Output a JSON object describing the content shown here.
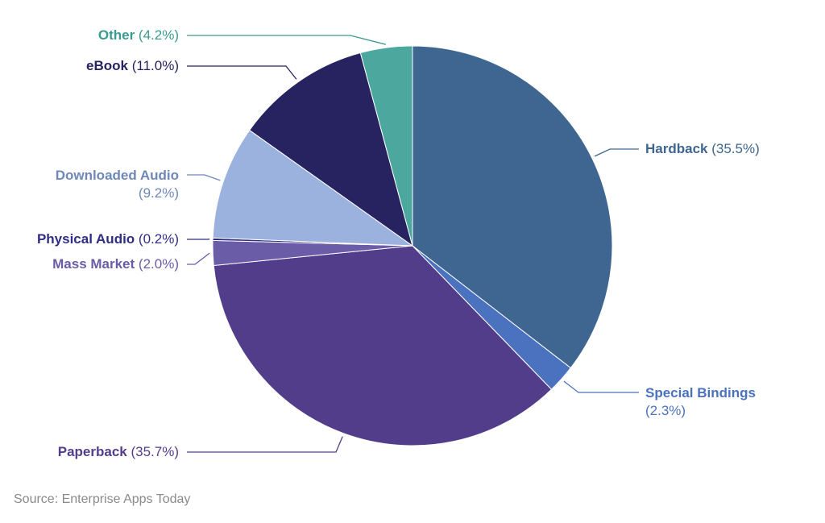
{
  "chart_data": {
    "type": "pie",
    "title": "",
    "categories": [
      "Hardback",
      "Special Bindings",
      "Paperback",
      "Mass Market",
      "Physical Audio",
      "Downloaded Audio",
      "eBook",
      "Other"
    ],
    "values": [
      35.5,
      2.3,
      35.7,
      2.0,
      0.2,
      9.2,
      11.0,
      4.2
    ],
    "unit": "%",
    "colors": [
      "#3f6690",
      "#4a72bf",
      "#523d8a",
      "#6b5ca8",
      "#2f2d86",
      "#9bb1de",
      "#262360",
      "#4ca79e"
    ],
    "start_angle": "12 o'clock, clockwise",
    "legend": "none (direct labels with leader lines)"
  },
  "labels": {
    "hardback": {
      "name": "Hardback",
      "pct": "(35.5%)",
      "color": "#3f6690"
    },
    "special": {
      "name": "Special Bindings",
      "pct": "(2.3%)",
      "color": "#4a72bf"
    },
    "paperback": {
      "name": "Paperback",
      "pct": "(35.7%)",
      "color": "#523d8a"
    },
    "mass": {
      "name": "Mass Market",
      "pct": "(2.0%)",
      "color": "#6b5ca8"
    },
    "physical": {
      "name": "Physical Audio",
      "pct": "(0.2%)",
      "color": "#2f2d86"
    },
    "downloaded": {
      "name": "Downloaded Audio",
      "pct": "(9.2%)",
      "color": "#6e88b8"
    },
    "ebook": {
      "name": "eBook",
      "pct": "(11.0%)",
      "color": "#262360"
    },
    "other": {
      "name": "Other",
      "pct": "(4.2%)",
      "color": "#3a9a8f"
    }
  },
  "source": "Source: Enterprise Apps Today"
}
